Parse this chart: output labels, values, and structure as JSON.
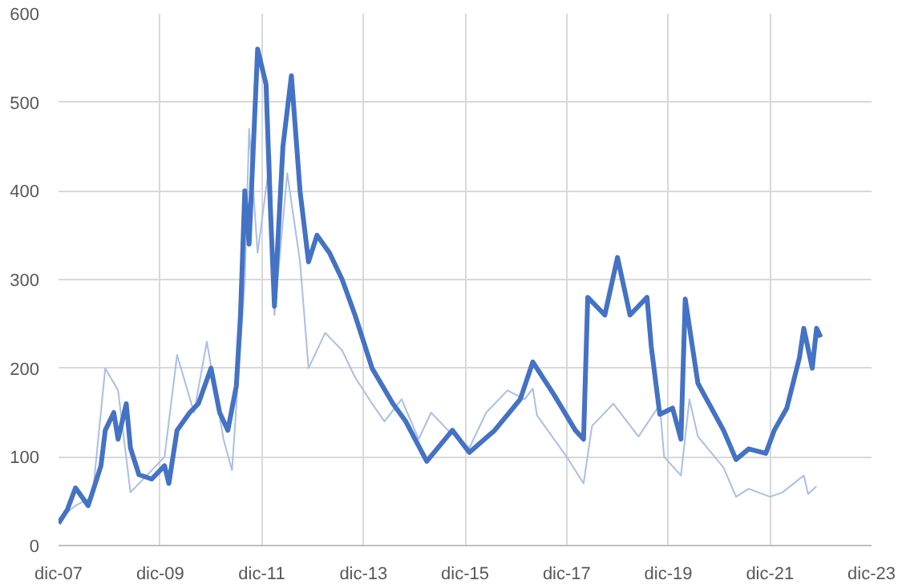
{
  "chart_data": {
    "type": "line",
    "xlim": [
      "2007-12-01",
      "2023-12-01"
    ],
    "xticks": [
      {
        "value": "2007-12-01",
        "label": "dic-07"
      },
      {
        "value": "2009-12-01",
        "label": "dic-09"
      },
      {
        "value": "2011-12-01",
        "label": "dic-11"
      },
      {
        "value": "2013-12-01",
        "label": "dic-13"
      },
      {
        "value": "2015-12-01",
        "label": "dic-15"
      },
      {
        "value": "2017-12-01",
        "label": "dic-17"
      },
      {
        "value": "2019-12-01",
        "label": "dic-19"
      },
      {
        "value": "2021-12-01",
        "label": "dic-21"
      },
      {
        "value": "2023-12-01",
        "label": "dic-23"
      }
    ],
    "ylim": [
      0,
      600
    ],
    "yticks": [
      0,
      100,
      200,
      300,
      400,
      500,
      600
    ],
    "grid": true,
    "series": [
      {
        "color": "#a9bfe6",
        "x": [
          "2007-12",
          "2008-04",
          "2008-08",
          "2008-11",
          "2009-02",
          "2009-05",
          "2009-09",
          "2010-01",
          "2010-04",
          "2010-08",
          "2010-11",
          "2011-03",
          "2011-05",
          "2011-08",
          "2011-09",
          "2011-11",
          "2012-02",
          "2012-03",
          "2012-06",
          "2012-09",
          "2012-11",
          "2013-03",
          "2013-07",
          "2013-10",
          "2014-02",
          "2014-05",
          "2014-09",
          "2015-01",
          "2015-04",
          "2015-08",
          "2016-01",
          "2016-05",
          "2016-10",
          "2017-02",
          "2017-04",
          "2017-05",
          "2017-12",
          "2018-04",
          "2018-06",
          "2018-11",
          "2019-05",
          "2019-10",
          "2019-11",
          "2020-03",
          "2020-05",
          "2020-07",
          "2021-01",
          "2021-04",
          "2021-07",
          "2021-12",
          "2022-03",
          "2022-08",
          "2022-09",
          "2022-11"
        ],
        "values": [
          30,
          45,
          55,
          200,
          175,
          60,
          80,
          100,
          215,
          150,
          230,
          120,
          85,
          300,
          470,
          330,
          440,
          260,
          420,
          320,
          200,
          240,
          220,
          190,
          160,
          140,
          165,
          120,
          150,
          130,
          110,
          150,
          175,
          165,
          177,
          147,
          100,
          70,
          135,
          160,
          123,
          159,
          100,
          79,
          165,
          123,
          88,
          55,
          64,
          55,
          60,
          79,
          58,
          67
        ]
      },
      {
        "color": "#4472c4",
        "x": [
          "2007-12",
          "2008-02",
          "2008-04",
          "2008-07",
          "2008-08",
          "2008-10",
          "2008-11",
          "2009-01",
          "2009-02",
          "2009-04",
          "2009-05",
          "2009-07",
          "2009-10",
          "2010-01",
          "2010-02",
          "2010-04",
          "2010-07",
          "2010-09",
          "2010-12",
          "2011-02",
          "2011-04",
          "2011-06",
          "2011-07",
          "2011-08",
          "2011-09",
          "2011-11",
          "2012-01",
          "2012-02",
          "2012-03",
          "2012-05",
          "2012-07",
          "2012-09",
          "2012-11",
          "2013-01",
          "2013-04",
          "2013-07",
          "2013-10",
          "2014-02",
          "2014-07",
          "2014-10",
          "2015-03",
          "2015-09",
          "2016-01",
          "2016-07",
          "2017-01",
          "2017-04",
          "2017-09",
          "2018-02",
          "2018-04",
          "2018-05",
          "2018-09",
          "2018-12",
          "2019-03",
          "2019-07",
          "2019-08",
          "2019-10",
          "2020-01",
          "2020-03",
          "2020-04",
          "2020-07",
          "2021-01",
          "2021-04",
          "2021-07",
          "2021-11",
          "2022-01",
          "2022-04",
          "2022-07",
          "2022-08",
          "2022-10",
          "2022-11",
          "2022-12"
        ],
        "values": [
          25,
          40,
          65,
          45,
          60,
          90,
          130,
          150,
          120,
          160,
          110,
          80,
          75,
          90,
          70,
          130,
          150,
          160,
          200,
          150,
          130,
          180,
          260,
          400,
          340,
          560,
          520,
          380,
          270,
          450,
          530,
          400,
          320,
          350,
          330,
          300,
          260,
          200,
          160,
          140,
          95,
          130,
          105,
          130,
          165,
          207,
          170,
          130,
          120,
          280,
          260,
          325,
          260,
          280,
          224,
          148,
          155,
          120,
          278,
          183,
          130,
          97,
          109,
          104,
          130,
          155,
          212,
          245,
          200,
          245,
          235
        ]
      }
    ]
  }
}
